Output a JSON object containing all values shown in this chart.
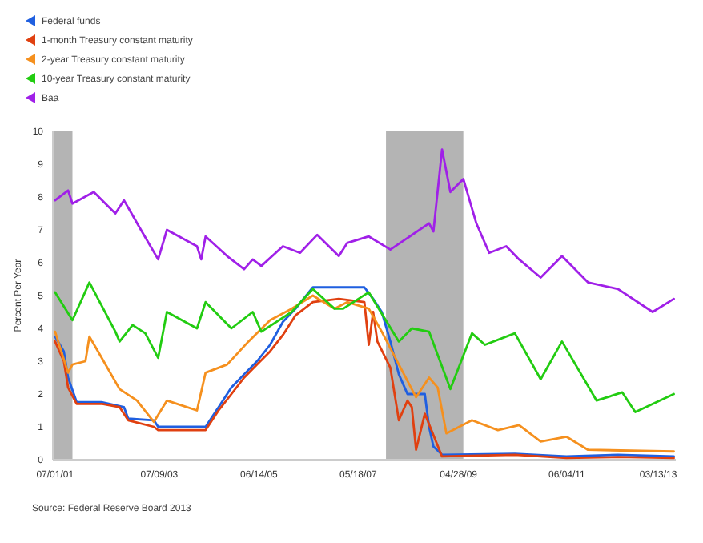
{
  "chart_data": {
    "type": "line",
    "ylabel": "Percent Per Year",
    "annotations": [
      "Source: Federal Reserve Board 2013"
    ],
    "legend": "top left",
    "marker": "none",
    "line_style": "solid",
    "grid": false,
    "xlim": [
      "2001-06-15",
      "2013-07-15"
    ],
    "xticks": [
      {
        "value": "2001-07-01",
        "label": "07/01/01"
      },
      {
        "value": "2003-07-09",
        "label": "07/09/03"
      },
      {
        "value": "2005-06-14",
        "label": "06/14/05"
      },
      {
        "value": "2007-05-18",
        "label": "05/18/07"
      },
      {
        "value": "2009-04-28",
        "label": "04/28/09"
      },
      {
        "value": "2011-06-04",
        "label": "06/04/11"
      },
      {
        "value": "2013-03-13",
        "label": "03/13/13"
      }
    ],
    "ylim": [
      0,
      10
    ],
    "yticks": [
      0,
      1,
      2,
      3,
      4,
      5,
      6,
      7,
      8,
      9,
      10
    ],
    "bands": [
      {
        "axis": "x",
        "from": "2001-06-15",
        "to": "2001-11",
        "color": "#b4b4b4"
      },
      {
        "axis": "x",
        "from": "2007-12",
        "to": "2009-06",
        "color": "#b4b4b4"
      }
    ],
    "series": [
      {
        "name": "Federal funds",
        "color": "#1f5fe0",
        "x": [
          "2001-07",
          "2001-09",
          "2001-10",
          "2001-12",
          "2002-06",
          "2002-11",
          "2002-12",
          "2003-06",
          "2003-07",
          "2004-06",
          "2004-09",
          "2004-12",
          "2005-03",
          "2005-06",
          "2005-09",
          "2005-12",
          "2006-03",
          "2006-07",
          "2007-07",
          "2007-09",
          "2007-11",
          "2008-01",
          "2008-03",
          "2008-05",
          "2008-09",
          "2008-10",
          "2008-11",
          "2009-01",
          "2010-06",
          "2011-06",
          "2012-06",
          "2013-07"
        ],
        "values": [
          3.75,
          3.3,
          2.5,
          1.75,
          1.75,
          1.6,
          1.25,
          1.2,
          1.0,
          1.0,
          1.6,
          2.2,
          2.6,
          3.0,
          3.5,
          4.2,
          4.6,
          5.25,
          5.25,
          4.9,
          4.5,
          3.6,
          2.6,
          2.0,
          2.0,
          1.0,
          0.4,
          0.15,
          0.18,
          0.1,
          0.15,
          0.1
        ]
      },
      {
        "name": "1-month Treasury constant maturity",
        "color": "#e04010",
        "x": [
          "2001-07",
          "2001-09",
          "2001-10",
          "2001-12",
          "2002-06",
          "2002-10",
          "2002-12",
          "2003-06",
          "2003-07",
          "2004-06",
          "2004-09",
          "2004-12",
          "2005-03",
          "2005-06",
          "2005-09",
          "2005-12",
          "2006-03",
          "2006-07",
          "2007-01",
          "2007-07",
          "2007-08",
          "2007-09",
          "2007-10",
          "2008-01",
          "2008-03",
          "2008-05",
          "2008-06",
          "2008-07",
          "2008-09",
          "2009-01",
          "2010-06",
          "2011-06",
          "2012-06",
          "2013-07"
        ],
        "values": [
          3.6,
          3.0,
          2.2,
          1.7,
          1.7,
          1.6,
          1.2,
          1.0,
          0.9,
          0.9,
          1.5,
          2.0,
          2.5,
          2.9,
          3.3,
          3.8,
          4.4,
          4.8,
          4.9,
          4.8,
          3.5,
          4.5,
          3.6,
          2.8,
          1.2,
          1.8,
          1.6,
          0.3,
          1.4,
          0.1,
          0.15,
          0.05,
          0.08,
          0.05
        ]
      },
      {
        "name": "2-year Treasury constant maturity",
        "color": "#f5901e",
        "x": [
          "2001-07",
          "2001-10",
          "2001-11",
          "2002-02",
          "2002-03",
          "2002-05",
          "2002-10",
          "2003-02",
          "2003-06",
          "2003-09",
          "2004-04",
          "2004-06",
          "2004-11",
          "2005-04",
          "2005-09",
          "2006-02",
          "2006-07",
          "2006-12",
          "2007-03",
          "2007-08",
          "2007-11",
          "2008-03",
          "2008-07",
          "2008-10",
          "2008-12",
          "2009-02",
          "2009-08",
          "2010-02",
          "2010-07",
          "2010-12",
          "2011-06",
          "2011-11",
          "2013-07"
        ],
        "values": [
          3.9,
          2.65,
          2.9,
          3.0,
          3.75,
          3.3,
          2.15,
          1.8,
          1.15,
          1.8,
          1.5,
          2.65,
          2.9,
          3.6,
          4.25,
          4.6,
          5.0,
          4.6,
          4.8,
          4.6,
          3.9,
          2.9,
          1.9,
          2.5,
          2.2,
          0.8,
          1.2,
          0.9,
          1.05,
          0.55,
          0.7,
          0.3,
          0.25
        ]
      },
      {
        "name": "10-year Treasury constant maturity",
        "color": "#22cc11",
        "x": [
          "2001-07",
          "2001-11",
          "2002-03",
          "2002-09",
          "2002-10",
          "2003-01",
          "2003-04",
          "2003-07",
          "2003-09",
          "2004-04",
          "2004-06",
          "2004-12",
          "2005-05",
          "2005-07",
          "2006-02",
          "2006-07",
          "2006-12",
          "2007-02",
          "2007-08",
          "2008-03",
          "2008-06",
          "2008-10",
          "2009-03",
          "2009-08",
          "2009-11",
          "2010-06",
          "2010-12",
          "2011-05",
          "2012-01",
          "2012-07",
          "2012-10",
          "2013-07"
        ],
        "values": [
          5.1,
          4.25,
          5.4,
          3.9,
          3.6,
          4.1,
          3.85,
          3.1,
          4.5,
          4.0,
          4.8,
          4.0,
          4.5,
          3.9,
          4.5,
          5.2,
          4.6,
          4.6,
          5.1,
          3.6,
          4.0,
          3.9,
          2.15,
          3.85,
          3.5,
          3.85,
          2.45,
          3.6,
          1.8,
          2.05,
          1.45,
          2.0
        ]
      },
      {
        "name": "Baa",
        "color": "#a020e8",
        "x": [
          "2001-07",
          "2001-10",
          "2001-11",
          "2002-04",
          "2002-09",
          "2002-11",
          "2003-03",
          "2003-07",
          "2003-09",
          "2004-04",
          "2004-05",
          "2004-06",
          "2004-11",
          "2005-03",
          "2005-05",
          "2005-07",
          "2005-12",
          "2006-04",
          "2006-08",
          "2007-01",
          "2007-03",
          "2007-08",
          "2008-01",
          "2008-10",
          "2008-11",
          "2009-01",
          "2009-03",
          "2009-06",
          "2009-09",
          "2009-12",
          "2010-04",
          "2010-07",
          "2010-12",
          "2011-05",
          "2011-11",
          "2012-06",
          "2013-02",
          "2013-07"
        ],
        "values": [
          7.9,
          8.2,
          7.8,
          8.15,
          7.5,
          7.9,
          7.0,
          6.1,
          7.0,
          6.5,
          6.1,
          6.8,
          6.2,
          5.8,
          6.1,
          5.9,
          6.5,
          6.3,
          6.85,
          6.2,
          6.6,
          6.8,
          6.4,
          7.2,
          6.95,
          9.45,
          8.15,
          8.55,
          7.2,
          6.3,
          6.5,
          6.1,
          5.55,
          6.2,
          5.4,
          5.2,
          4.5,
          4.9
        ]
      }
    ]
  }
}
